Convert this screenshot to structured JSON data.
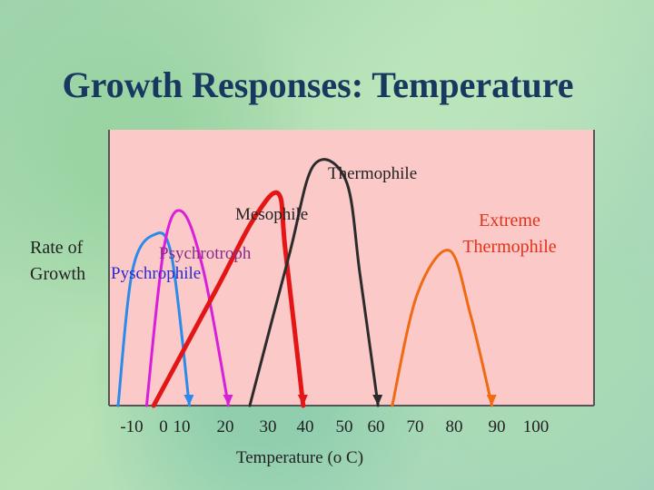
{
  "slide": {
    "title": "Growth Responses: Temperature"
  },
  "colors": {
    "plot_background": "#fbc9c8",
    "axis": "#555555",
    "label_text": "#222222",
    "blue_label": "#2a2acf",
    "psychrotroph_label": "#8b2a8b"
  },
  "chart_data": {
    "type": "line",
    "xlabel": "Temperature (o C)",
    "ylabel": "Rate of Growth",
    "ylabel_lines": [
      "Rate of",
      "Growth"
    ],
    "xlim": [
      -10,
      100
    ],
    "ylim": [
      0,
      1
    ],
    "x_tick_labels": [
      "-10",
      "0",
      "10",
      "20",
      "30",
      "40",
      "50",
      "60",
      "70",
      "80",
      "90",
      "100"
    ],
    "grid": false,
    "series": [
      {
        "name": "Pyschrophile",
        "color": "#2a8be8",
        "points": [
          [
            -10,
            0
          ],
          [
            -6,
            0.52
          ],
          [
            0,
            0.66
          ],
          [
            5,
            0.58
          ],
          [
            10,
            0
          ]
        ]
      },
      {
        "name": "Psychrotroph",
        "color": "#d91fd9",
        "points": [
          [
            -2,
            0
          ],
          [
            3,
            0.62
          ],
          [
            8,
            0.75
          ],
          [
            14,
            0.52
          ],
          [
            21,
            0
          ]
        ]
      },
      {
        "name": "Mesophile",
        "color": "#e41515",
        "points": [
          [
            0,
            0
          ],
          [
            18,
            0.46
          ],
          [
            28,
            0.72
          ],
          [
            35,
            0.82
          ],
          [
            37,
            0.6
          ],
          [
            42,
            0
          ]
        ]
      },
      {
        "name": "Thermophile",
        "color": "#2b2b2b",
        "points": [
          [
            27,
            0
          ],
          [
            38,
            0.58
          ],
          [
            45,
            0.93
          ],
          [
            54,
            0.87
          ],
          [
            58,
            0.5
          ],
          [
            63,
            0
          ]
        ]
      },
      {
        "name": "Extreme Thermophile",
        "color": "#f06a14",
        "points": [
          [
            67,
            0
          ],
          [
            74,
            0.43
          ],
          [
            83,
            0.6
          ],
          [
            89,
            0.35
          ],
          [
            95,
            0
          ]
        ]
      }
    ],
    "series_labels": [
      {
        "name": "Pyschrophile",
        "lines": [
          "Pyschrophile"
        ]
      },
      {
        "name": "Psychrotroph",
        "lines": [
          "Psychrotroph"
        ]
      },
      {
        "name": "Mesophile",
        "lines": [
          "Mesophile"
        ]
      },
      {
        "name": "Thermophile",
        "lines": [
          "Thermophile"
        ]
      },
      {
        "name": "Extreme Thermophile",
        "lines": [
          "Extreme",
          "Thermophile"
        ]
      }
    ]
  }
}
